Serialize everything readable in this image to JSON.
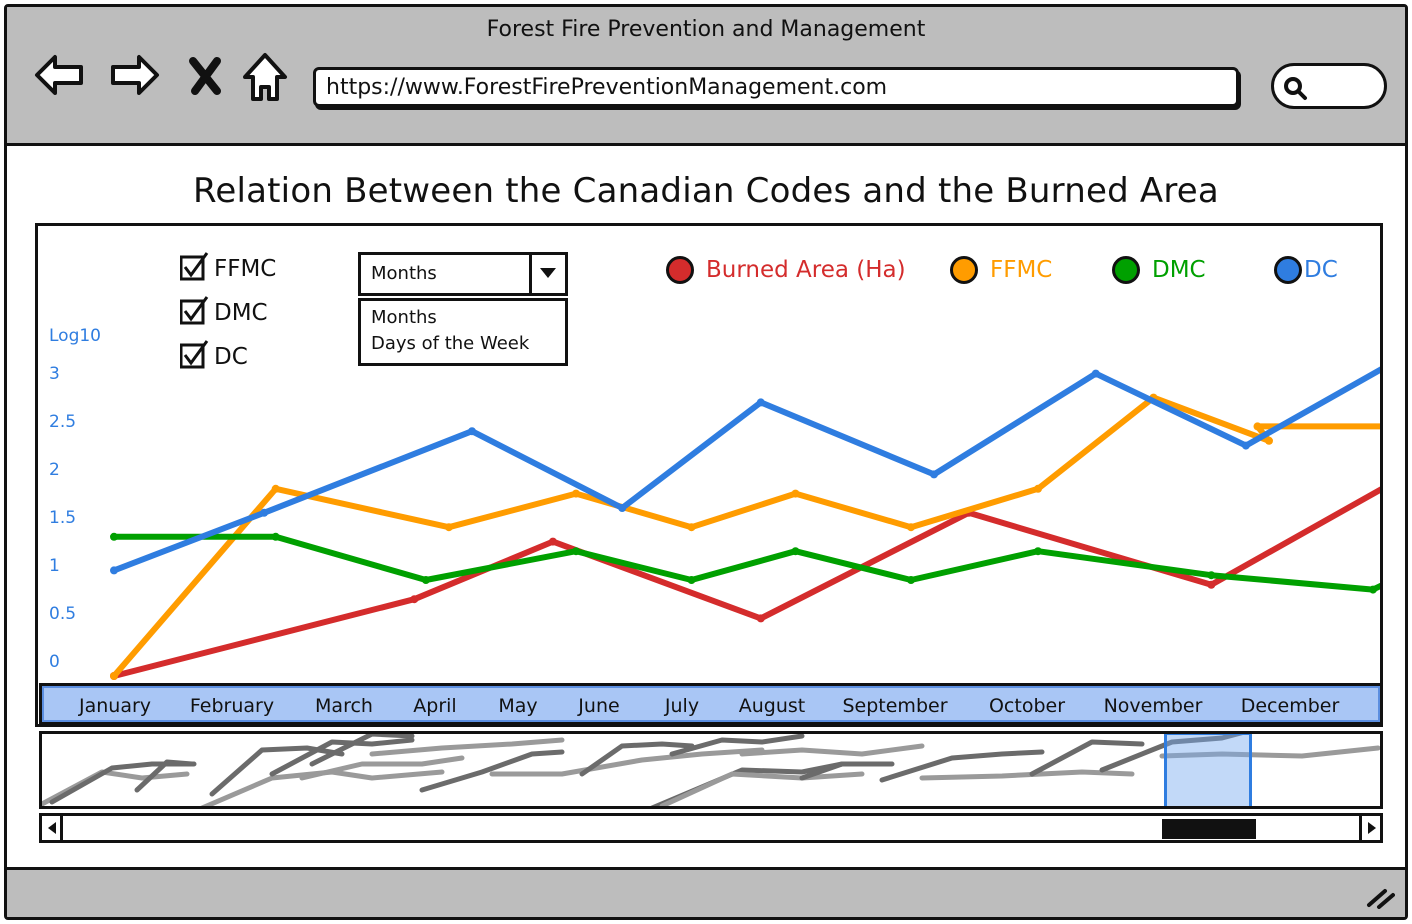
{
  "window": {
    "title": "Forest Fire Prevention and Management"
  },
  "toolbar": {
    "url": "https://www.ForestFirePreventionManagement.com",
    "icons": [
      "back-arrow-icon",
      "forward-arrow-icon",
      "close-icon",
      "home-icon",
      "search-icon"
    ]
  },
  "page": {
    "title": "Relation Between the Canadian Codes and the Burned Area"
  },
  "filters": {
    "checkboxes": [
      {
        "label": "FFMC",
        "checked": true
      },
      {
        "label": "DMC",
        "checked": true
      },
      {
        "label": "DC",
        "checked": true
      }
    ],
    "dropdown": {
      "selected": "Months",
      "options": [
        "Months",
        "Days of the Week"
      ]
    }
  },
  "legend": [
    {
      "label": "Burned Area (Ha)",
      "color": "#d42c2c"
    },
    {
      "label": "FFMC",
      "color": "#ff9c00"
    },
    {
      "label": "DMC",
      "color": "#00a000"
    },
    {
      "label": "DC",
      "color": "#2f7de0"
    }
  ],
  "chart_data": {
    "type": "line",
    "ylabel": "Log10",
    "ylim": [
      0,
      3
    ],
    "yticks": [
      "3",
      "2.5",
      "2",
      "1.5",
      "1",
      "0.5",
      "0"
    ],
    "categories": [
      "January",
      "February",
      "March",
      "April",
      "May",
      "June",
      "July",
      "August",
      "September",
      "October",
      "November",
      "December"
    ],
    "series": [
      {
        "name": "Burned Area (Ha)",
        "color": "#d42c2c",
        "points": [
          [
            1.0,
            0.0
          ],
          [
            3.6,
            0.8
          ],
          [
            4.8,
            1.4
          ],
          [
            6.6,
            0.6
          ],
          [
            8.4,
            1.7
          ],
          [
            10.5,
            0.95
          ],
          [
            12.2,
            2.1
          ]
        ]
      },
      {
        "name": "FFMC",
        "color": "#ff9c00",
        "points": [
          [
            1.0,
            0.0
          ],
          [
            2.4,
            1.95
          ],
          [
            3.9,
            1.55
          ],
          [
            5.0,
            1.9
          ],
          [
            6.0,
            1.55
          ],
          [
            6.9,
            1.9
          ],
          [
            7.9,
            1.55
          ],
          [
            9.0,
            1.95
          ],
          [
            10.0,
            2.9
          ],
          [
            11.0,
            2.45
          ],
          [
            10.9,
            2.6
          ],
          [
            12.2,
            2.6
          ]
        ]
      },
      {
        "name": "DMC",
        "color": "#00a000",
        "points": [
          [
            1.0,
            1.45
          ],
          [
            2.4,
            1.45
          ],
          [
            3.7,
            1.0
          ],
          [
            5.0,
            1.3
          ],
          [
            6.0,
            1.0
          ],
          [
            6.9,
            1.3
          ],
          [
            7.9,
            1.0
          ],
          [
            9.0,
            1.3
          ],
          [
            10.5,
            1.05
          ],
          [
            11.9,
            0.9
          ],
          [
            12.5,
            1.25
          ]
        ]
      },
      {
        "name": "DC",
        "color": "#2f7de0",
        "points": [
          [
            1.0,
            1.1
          ],
          [
            2.3,
            1.7
          ],
          [
            4.1,
            2.55
          ],
          [
            5.4,
            1.75
          ],
          [
            6.6,
            2.85
          ],
          [
            8.1,
            2.1
          ],
          [
            9.5,
            3.15
          ],
          [
            10.8,
            2.4
          ],
          [
            12.2,
            3.35
          ]
        ]
      }
    ]
  },
  "overview": {
    "selected_month": "December"
  },
  "scrollbar": {
    "left_icon": "scroll-left-icon",
    "right_icon": "scroll-right-icon"
  }
}
